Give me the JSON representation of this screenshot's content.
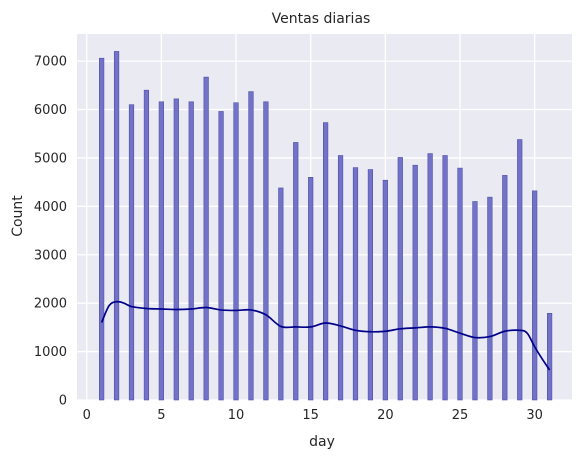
{
  "chart_data": {
    "type": "bar",
    "title": "Ventas diarias",
    "xlabel": "day",
    "ylabel": "Count",
    "x": [
      1,
      2,
      3,
      4,
      5,
      6,
      7,
      8,
      9,
      10,
      11,
      12,
      13,
      14,
      15,
      16,
      17,
      18,
      19,
      20,
      21,
      22,
      23,
      24,
      25,
      26,
      27,
      28,
      29,
      30,
      31
    ],
    "values": [
      7060,
      7200,
      6100,
      6400,
      6160,
      6220,
      6160,
      6670,
      5960,
      6140,
      6370,
      6160,
      4380,
      5320,
      4600,
      5730,
      5050,
      4800,
      4760,
      4540,
      5010,
      4850,
      5090,
      5050,
      4790,
      4100,
      4190,
      4640,
      5380,
      4320,
      1790
    ],
    "kde": {
      "x": [
        1,
        1.5,
        2,
        2.5,
        3,
        4,
        5,
        6,
        7,
        8,
        9,
        10,
        11,
        12,
        13,
        14,
        15,
        16,
        17,
        18,
        19,
        20,
        21,
        22,
        23,
        24,
        25,
        26,
        27,
        28,
        29,
        29.5,
        30,
        30.5,
        31
      ],
      "y": [
        1600,
        1950,
        2030,
        2000,
        1930,
        1890,
        1880,
        1870,
        1880,
        1910,
        1860,
        1850,
        1860,
        1760,
        1520,
        1510,
        1510,
        1590,
        1530,
        1440,
        1410,
        1420,
        1470,
        1490,
        1510,
        1480,
        1380,
        1290,
        1310,
        1420,
        1440,
        1380,
        1100,
        850,
        620
      ]
    },
    "xticks": [
      0,
      5,
      10,
      15,
      20,
      25,
      30
    ],
    "yticks": [
      0,
      1000,
      2000,
      3000,
      4000,
      5000,
      6000,
      7000
    ],
    "xlim": [
      -0.65,
      32.5
    ],
    "ylim": [
      0,
      7560
    ],
    "bar_color": "#7272c8",
    "bar_edge_color": "#4e4ea8",
    "kde_color": "#00008b",
    "plot_background": "#eaeaf2",
    "grid": true,
    "legend": "none"
  }
}
